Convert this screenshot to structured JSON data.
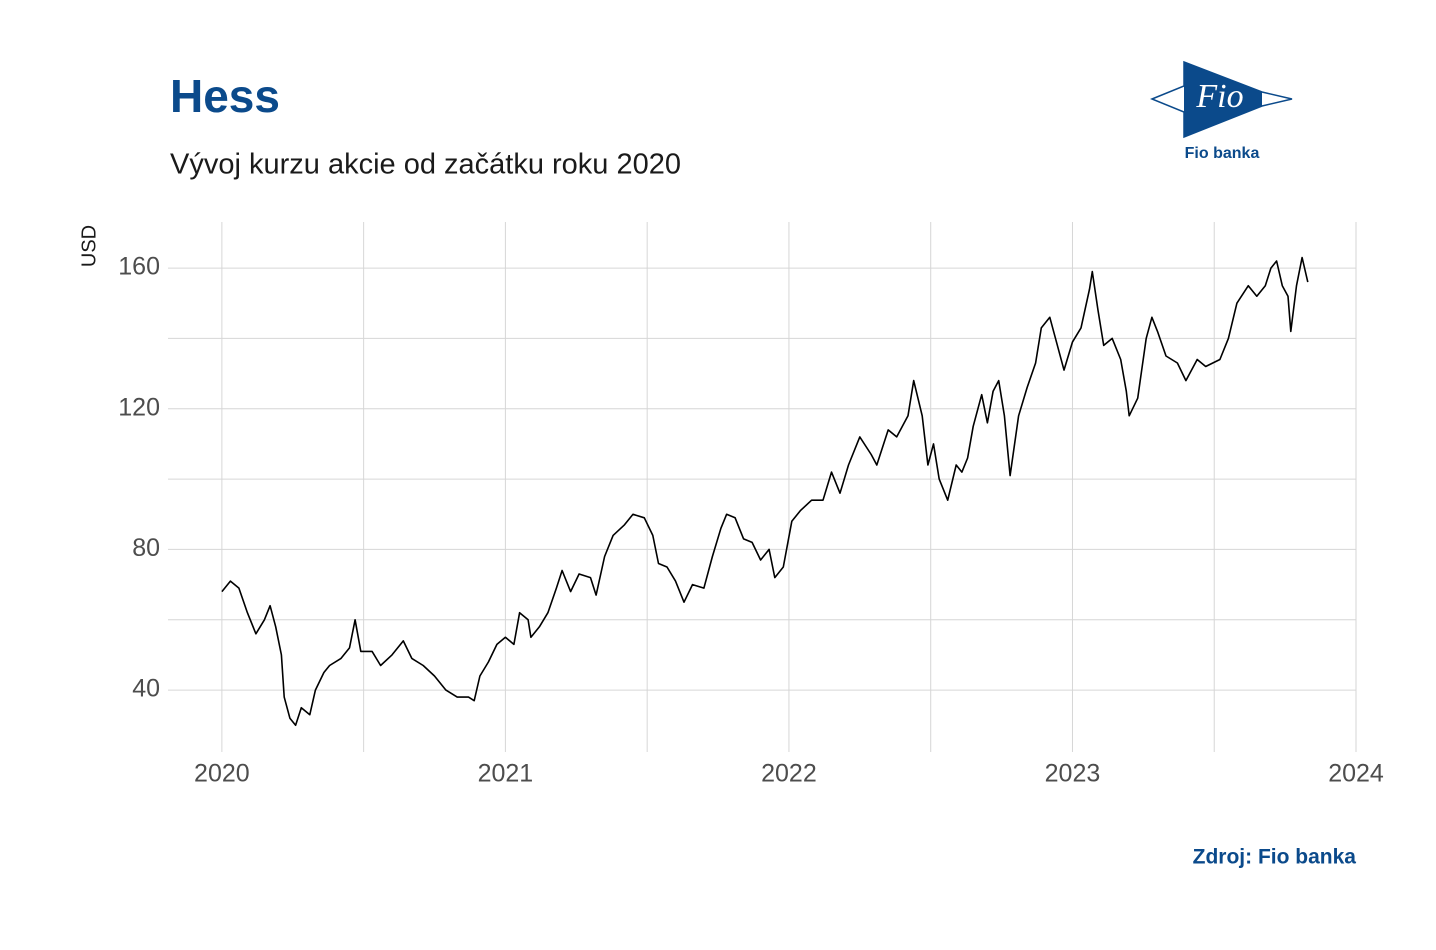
{
  "chart_data": {
    "type": "line",
    "title": "Hess",
    "subtitle": "Vývoj kurzu akcie od začátku roku 2020",
    "y_label": "USD",
    "source": "Zdroj: Fio banka",
    "logo_text": "Fio",
    "logo_caption": "Fio banka",
    "xlim": [
      2019.81,
      2024.0
    ],
    "xticks": [
      2020,
      2021,
      2022,
      2023,
      2024
    ],
    "xminor": [
      2020.5,
      2021.5,
      2022.5,
      2023.5
    ],
    "ylim": [
      22.4,
      173.1
    ],
    "yticks": [
      40,
      80,
      120,
      160
    ],
    "yminor": [
      60,
      100,
      140
    ],
    "grid": true,
    "x": [
      2020.0,
      2020.03,
      2020.06,
      2020.09,
      2020.12,
      2020.15,
      2020.17,
      2020.19,
      2020.21,
      2020.22,
      2020.24,
      2020.26,
      2020.28,
      2020.31,
      2020.33,
      2020.36,
      2020.38,
      2020.42,
      2020.45,
      2020.47,
      2020.49,
      2020.53,
      2020.56,
      2020.6,
      2020.64,
      2020.67,
      2020.71,
      2020.75,
      2020.79,
      2020.83,
      2020.87,
      2020.89,
      2020.91,
      2020.94,
      2020.97,
      2021.0,
      2021.03,
      2021.05,
      2021.08,
      2021.09,
      2021.12,
      2021.15,
      2021.18,
      2021.2,
      2021.23,
      2021.26,
      2021.3,
      2021.32,
      2021.35,
      2021.38,
      2021.42,
      2021.45,
      2021.49,
      2021.52,
      2021.54,
      2021.57,
      2021.6,
      2021.63,
      2021.66,
      2021.7,
      2021.73,
      2021.76,
      2021.78,
      2021.81,
      2021.84,
      2021.87,
      2021.9,
      2021.93,
      2021.95,
      2021.98,
      2022.01,
      2022.04,
      2022.08,
      2022.12,
      2022.15,
      2022.18,
      2022.21,
      2022.25,
      2022.29,
      2022.31,
      2022.35,
      2022.38,
      2022.42,
      2022.44,
      2022.47,
      2022.49,
      2022.51,
      2022.53,
      2022.56,
      2022.59,
      2022.61,
      2022.63,
      2022.65,
      2022.68,
      2022.7,
      2022.72,
      2022.74,
      2022.76,
      2022.78,
      2022.81,
      2022.84,
      2022.87,
      2022.89,
      2022.92,
      2022.94,
      2022.97,
      2023.0,
      2023.03,
      2023.06,
      2023.07,
      2023.09,
      2023.11,
      2023.14,
      2023.17,
      2023.19,
      2023.2,
      2023.23,
      2023.26,
      2023.28,
      2023.3,
      2023.33,
      2023.37,
      2023.4,
      2023.44,
      2023.47,
      2023.52,
      2023.55,
      2023.58,
      2023.62,
      2023.65,
      2023.68,
      2023.7,
      2023.72,
      2023.74,
      2023.76,
      2023.77,
      2023.79,
      2023.81,
      2023.83
    ],
    "series": [
      {
        "color": "#000000",
        "values": [
          68,
          71,
          69,
          62,
          56,
          60,
          64,
          58,
          50,
          38,
          32,
          30,
          35,
          33,
          40,
          45,
          47,
          49,
          52,
          60,
          51,
          51,
          47,
          50,
          54,
          49,
          47,
          44,
          40,
          38,
          38,
          37,
          44,
          48,
          53,
          55,
          53,
          62,
          60,
          55,
          58,
          62,
          69,
          74,
          68,
          73,
          72,
          67,
          78,
          84,
          87,
          90,
          89,
          84,
          76,
          75,
          71,
          65,
          70,
          69,
          78,
          86,
          90,
          89,
          83,
          82,
          77,
          80,
          72,
          75,
          88,
          91,
          94,
          94,
          102,
          96,
          104,
          112,
          107,
          104,
          114,
          112,
          118,
          128,
          118,
          104,
          110,
          100,
          94,
          104,
          102,
          106,
          115,
          124,
          116,
          125,
          128,
          118,
          101,
          118,
          126,
          133,
          143,
          146,
          140,
          131,
          139,
          143,
          154,
          159,
          148,
          138,
          140,
          134,
          125,
          118,
          123,
          140,
          146,
          142,
          135,
          133,
          128,
          134,
          132,
          134,
          140,
          150,
          155,
          152,
          155,
          160,
          162,
          155,
          152,
          142,
          155,
          163,
          156
        ]
      }
    ]
  }
}
